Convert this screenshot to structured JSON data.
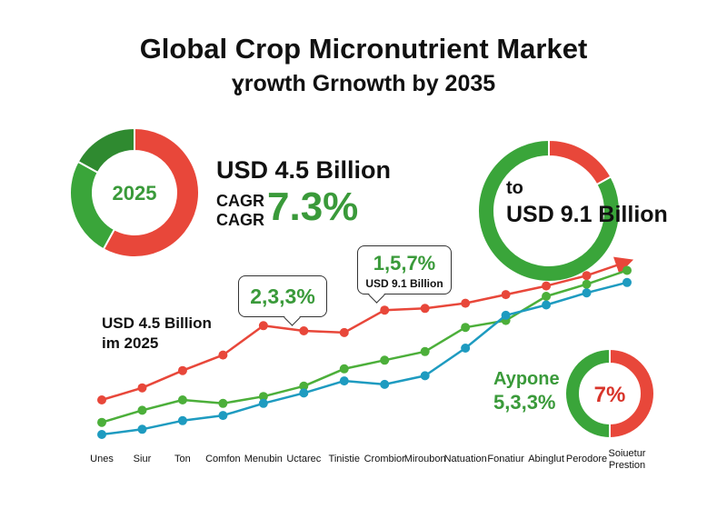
{
  "title_line1": "Global Crop Micronutrient Market",
  "title_line2": "ɣrowth Grnowth by 2035",
  "donut_2025": {
    "label": "2025",
    "slices": [
      {
        "value": 58,
        "color": "#e8473a"
      },
      {
        "value": 25,
        "color": "#3aa53a"
      },
      {
        "value": 17,
        "color": "#2f8a30"
      }
    ]
  },
  "stat_value": "USD 4.5 Billion",
  "cagr_label_1": "CAGR",
  "cagr_label_2": "CAGR",
  "cagr_value": "7.3%",
  "donut_2035": {
    "slices": [
      {
        "value": 17,
        "color": "#e8473a"
      },
      {
        "value": 83,
        "color": "#3aa53a"
      }
    ]
  },
  "to_label": "to",
  "to_value": "USD 9.1 Billion",
  "annotation_value": "USD 4.5 Billion",
  "annotation_year": "im 2025",
  "callout_1": "2,3,3%",
  "callout_2_value": "1,5,7%",
  "callout_2_sub": "USD 9.1 Billion",
  "small_donut": {
    "name": "Aypone",
    "name_value": "5,3,3%",
    "center": "7%",
    "slices": [
      {
        "value": 50,
        "color": "#e8473a"
      },
      {
        "value": 50,
        "color": "#3aa53a"
      }
    ]
  },
  "chart_data": {
    "type": "line",
    "categories": [
      "Unes",
      "Siur",
      "Ton",
      "Comfon",
      "Menubin",
      "Uctarec",
      "Tinistie",
      "Crombior",
      "Miroubon",
      "Natuation",
      "Fonatiur",
      "Abinglut",
      "Perodore",
      "Soiuetur Prestion"
    ],
    "ylim": [
      0,
      100
    ],
    "grid": false,
    "series": [
      {
        "color": "#e8473a",
        "values": [
          20,
          27,
          37,
          46,
          63,
          60,
          59,
          72,
          73,
          76,
          81,
          86,
          92,
          100
        ]
      },
      {
        "color": "#4caf3a",
        "values": [
          7,
          14,
          20,
          18,
          22,
          28,
          38,
          43,
          48,
          62,
          66,
          80,
          87,
          95
        ]
      },
      {
        "color": "#1e9bc0",
        "values": [
          0,
          3,
          8,
          11,
          18,
          24,
          31,
          29,
          34,
          50,
          69,
          75,
          82,
          88
        ]
      }
    ]
  }
}
